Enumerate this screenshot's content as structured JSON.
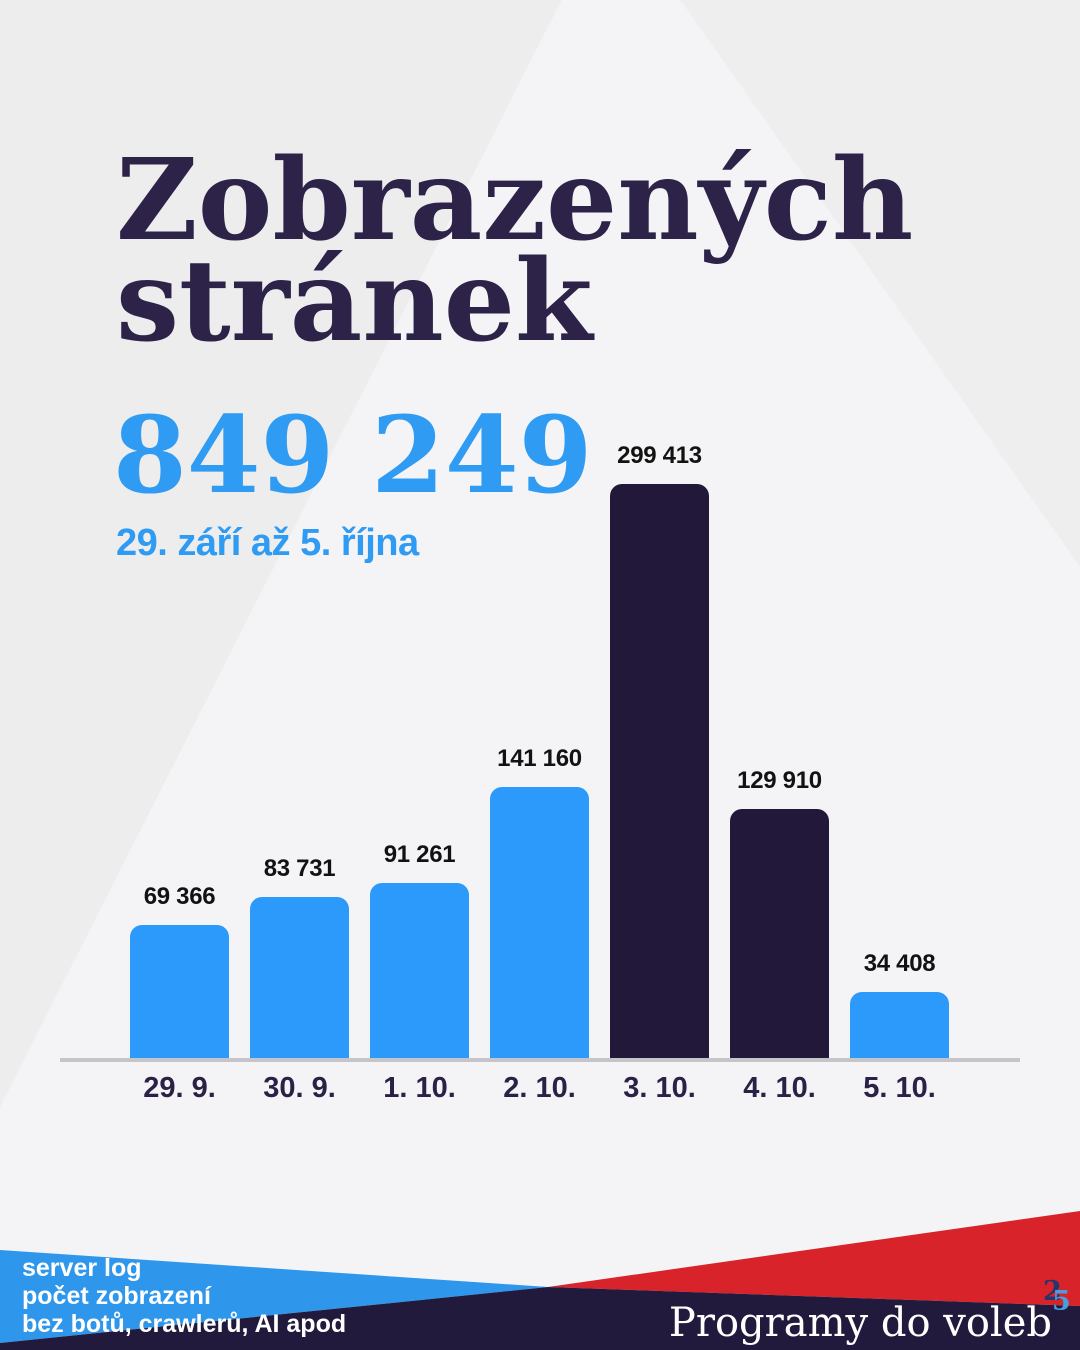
{
  "header": {
    "title_line1": "Zobrazených",
    "title_line2": "stránek",
    "total_value": "849 249",
    "date_range": "29. září až 5. října"
  },
  "chart_data": {
    "type": "bar",
    "title": "Zobrazených stránek",
    "total": 849249,
    "period": "29. září až 5. října",
    "categories": [
      "29. 9.",
      "30. 9.",
      "1. 10.",
      "2. 10.",
      "3. 10.",
      "4. 10.",
      "5. 10."
    ],
    "values": [
      69366,
      83731,
      91261,
      141160,
      299413,
      129910,
      34408
    ],
    "value_labels": [
      "69 366",
      "83 731",
      "91 261",
      "141 160",
      "299 413",
      "129 910",
      "34 408"
    ],
    "bar_colors": [
      "#2b9afb",
      "#2b9afb",
      "#2b9afb",
      "#2b9afb",
      "#221839",
      "#221839",
      "#2b9afb"
    ],
    "ylim": [
      0,
      300000
    ],
    "grid": false,
    "legend_position": "none"
  },
  "footer": {
    "source_line1": "server log",
    "source_line2": "počet zobrazení",
    "source_line3": "bez botů, crawlerů, AI apod",
    "brand": "Programy do voleb",
    "logo_digit_1": "2",
    "logo_digit_2": "5"
  },
  "colors": {
    "accent_blue": "#2b9afb",
    "dark_navy_bar": "#221839",
    "title_navy": "#2d2348",
    "value_label": "#121212",
    "background": "#ededee",
    "axis_line": "#c5c5c9",
    "footer_blue": "#2e97ec",
    "footer_navy": "#211a3c",
    "footer_red": "#d8232a",
    "footer_text": "#ffffff"
  }
}
